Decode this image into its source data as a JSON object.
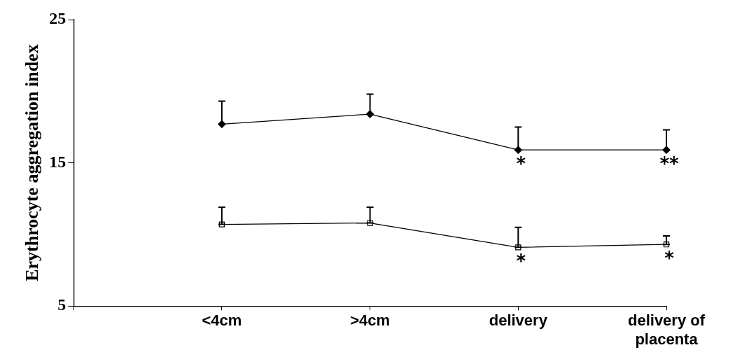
{
  "chart_data": {
    "type": "line",
    "ylabel": "Erythrocyte aggregation index",
    "categories": [
      null,
      "<4cm",
      ">4cm",
      "delivery",
      "delivery of placenta"
    ],
    "ylim": [
      5,
      25
    ],
    "yticks": [
      5,
      15,
      25
    ],
    "grid": false,
    "legend": false,
    "line_style": "solid",
    "series": [
      {
        "color": "#000000",
        "marker": "diamond",
        "values": [
          null,
          17.7,
          18.4,
          15.9,
          15.9
        ],
        "errors": [
          null,
          [
            17.7,
            19.3
          ],
          [
            18.4,
            19.8
          ],
          [
            15.9,
            17.5
          ],
          [
            15.9,
            17.3
          ]
        ]
      },
      {
        "color": "#000000",
        "marker": "square",
        "values": [
          null,
          10.7,
          10.8,
          9.1,
          9.3
        ],
        "errors": [
          null,
          [
            10.7,
            11.9
          ],
          [
            10.8,
            11.9
          ],
          [
            9.1,
            10.5
          ],
          [
            9.3,
            9.9
          ]
        ]
      }
    ],
    "annotations": [
      {
        "text": "*",
        "x": "delivery",
        "y": 15.9
      },
      {
        "text": "**",
        "x": "delivery of placenta",
        "y": 15.9
      },
      {
        "text": "*",
        "x": "delivery",
        "y": 9.1
      },
      {
        "text": "*",
        "x": "delivery of placenta",
        "y": 9.3
      }
    ]
  }
}
